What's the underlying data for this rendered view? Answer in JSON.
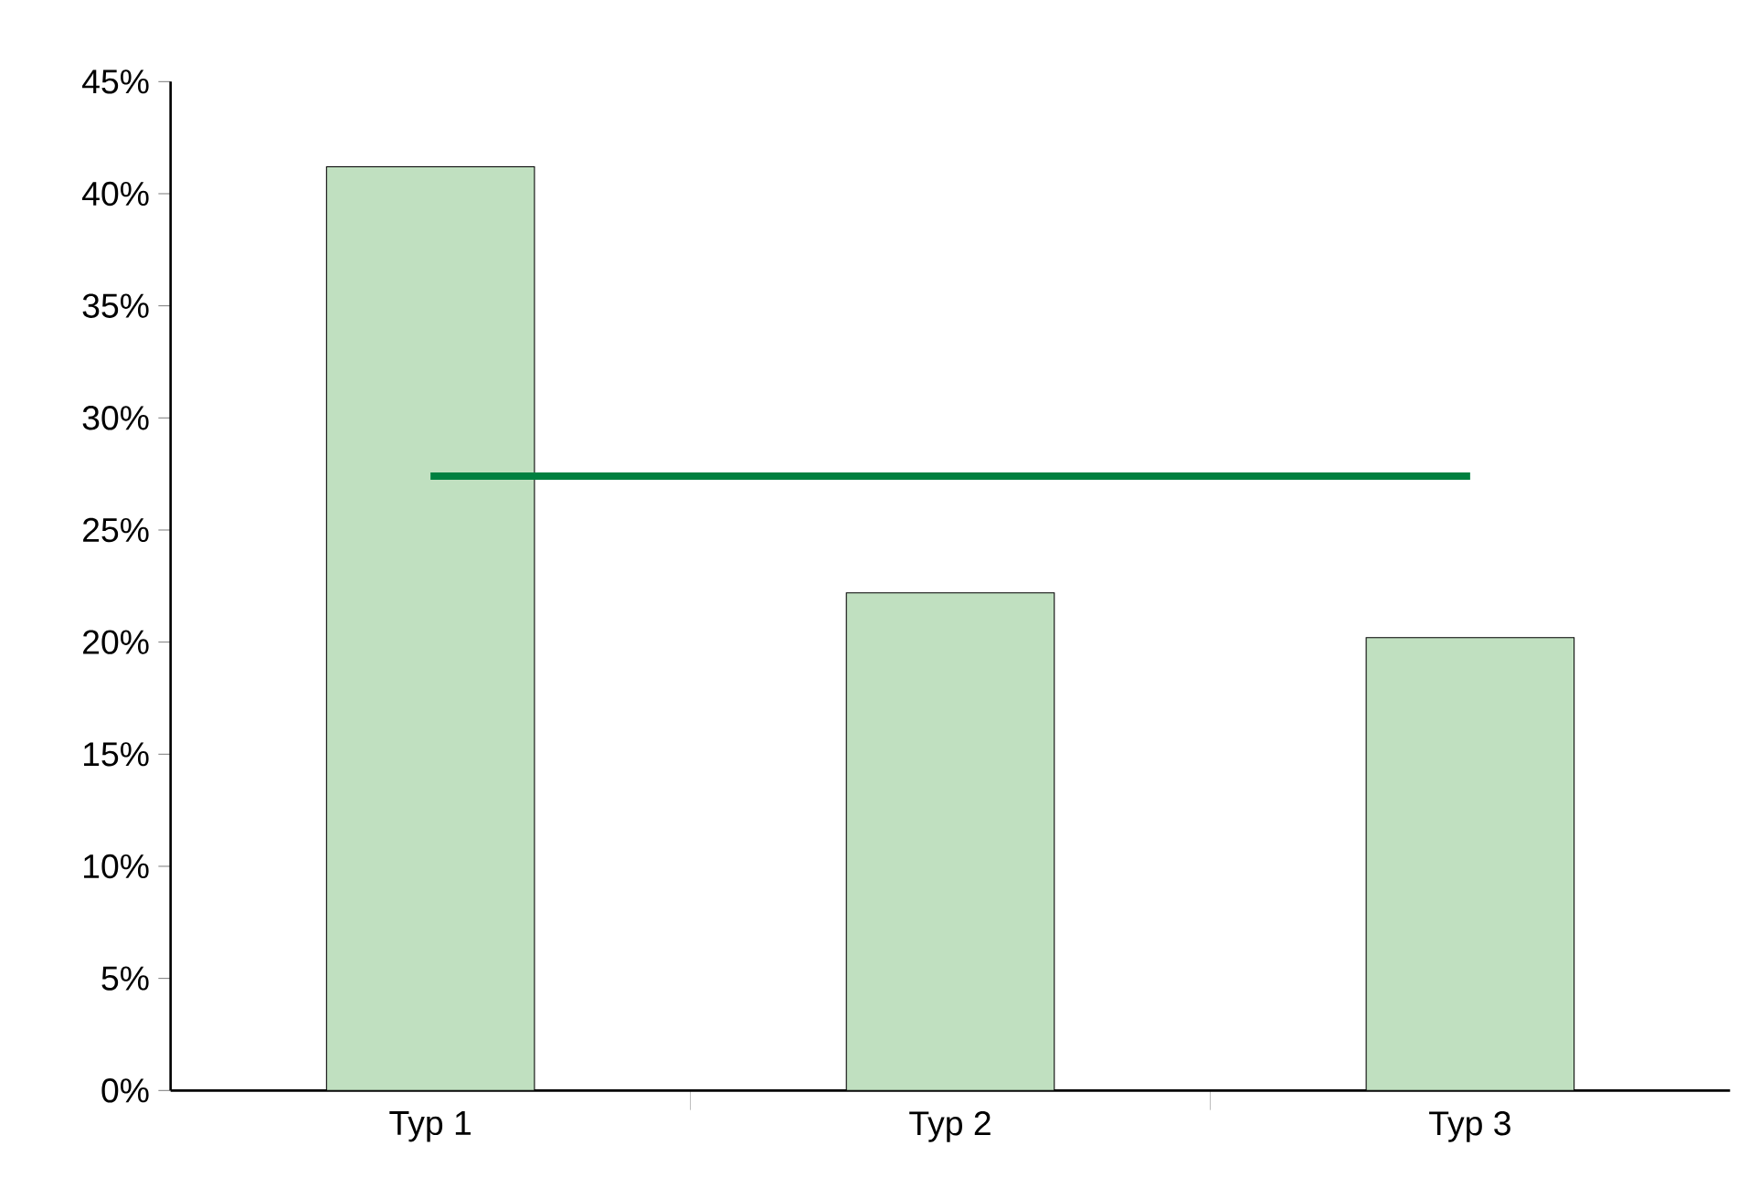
{
  "chart_data": {
    "type": "bar",
    "categories": [
      "Typ 1",
      "Typ 2",
      "Typ 3"
    ],
    "series": [
      {
        "color": "#c0e0c0",
        "values": [
          41.2,
          22.2,
          20.2
        ]
      },
      {
        "type": "line",
        "color": "#008040",
        "values": [
          27.4,
          27.4,
          27.4
        ]
      }
    ],
    "ylim": [
      0,
      45
    ],
    "yticks": [
      {
        "value": 0,
        "label": "0%"
      },
      {
        "value": 5,
        "label": "5%"
      },
      {
        "value": 10,
        "label": "10%"
      },
      {
        "value": 15,
        "label": "15%"
      },
      {
        "value": 20,
        "label": "20%"
      },
      {
        "value": 25,
        "label": "25%"
      },
      {
        "value": 30,
        "label": "30%"
      },
      {
        "value": 35,
        "label": "35%"
      },
      {
        "value": 40,
        "label": "40%"
      },
      {
        "value": 45,
        "label": "45%"
      }
    ],
    "grid": false
  }
}
